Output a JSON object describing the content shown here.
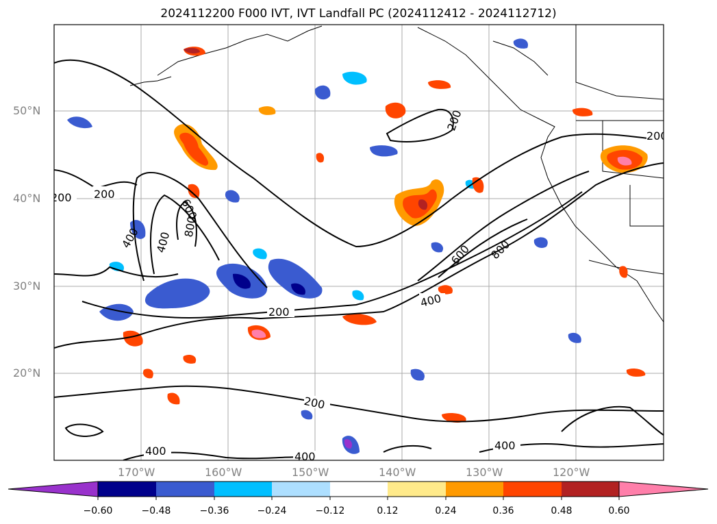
{
  "title": "2024112200 F000 IVT, IVT Landfall PC (2024112412 - 2024112712)",
  "colors": {
    "bins": [
      "#9932CC",
      "#00008B",
      "#3A5BD0",
      "#00BFFF",
      "#ADDFFF",
      "#FFFFFF",
      "#FFEA8A",
      "#FF9A00",
      "#FF4500",
      "#B22222",
      "#FF7FAA"
    ],
    "contour": "#000000",
    "grid": "#aaaaaa",
    "tick_text": "#808080"
  },
  "map": {
    "lat_labels": [
      "50°N",
      "40°N",
      "30°N",
      "20°N"
    ],
    "lon_labels": [
      "170°W",
      "160°W",
      "150°W",
      "140°W",
      "130°W",
      "120°W"
    ],
    "contour_labels": [
      "200",
      "200",
      "200",
      "200",
      "200",
      "200",
      "400",
      "400",
      "400",
      "400",
      "400",
      "400",
      "600",
      "600",
      "800",
      "800"
    ]
  },
  "colorbar": {
    "ticks": [
      "−0.60",
      "−0.48",
      "−0.36",
      "−0.24",
      "−0.12",
      "0.12",
      "0.24",
      "0.36",
      "0.48",
      "0.60"
    ]
  }
}
